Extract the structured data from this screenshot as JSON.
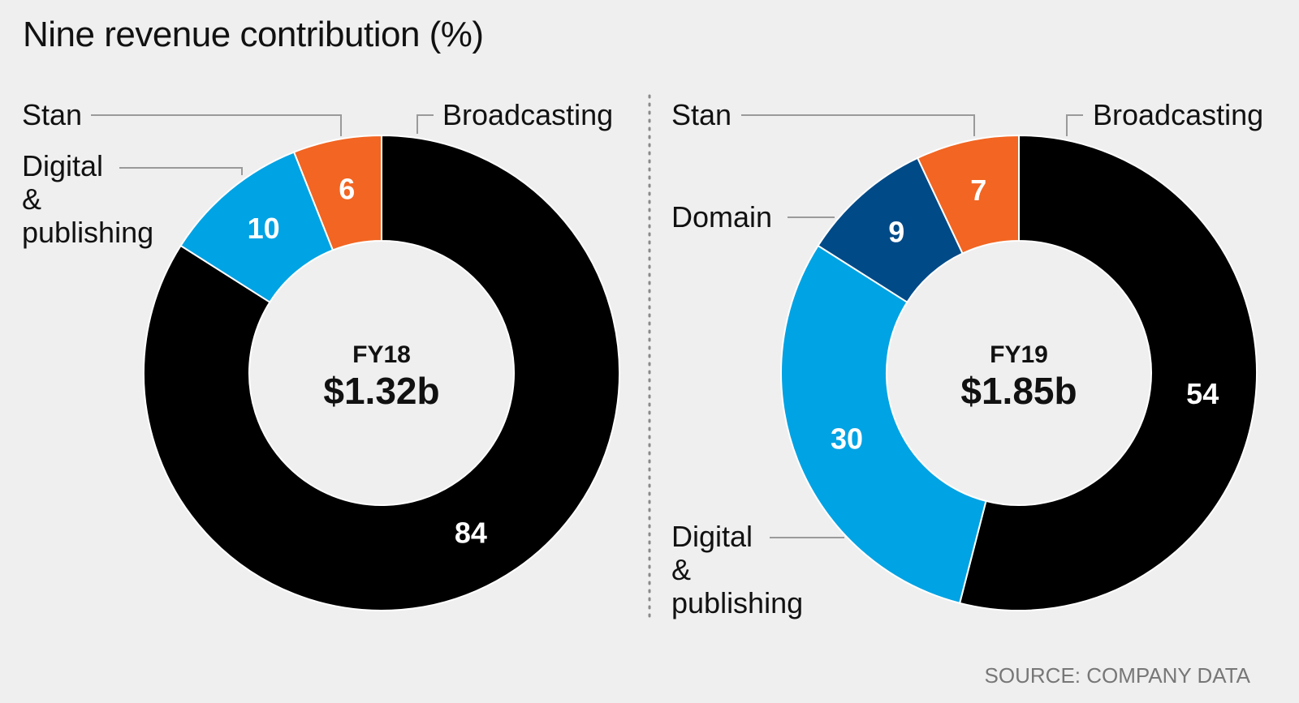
{
  "title": "Nine revenue contribution (%)",
  "source": "SOURCE: COMPANY DATA",
  "chart_data": [
    {
      "type": "pie",
      "period": "FY18",
      "total": "$1.32b",
      "slices": [
        {
          "label": "Broadcasting",
          "value": 84,
          "color": "#000000"
        },
        {
          "label": "Digital & publishing",
          "value": 10,
          "color": "#00a3e4"
        },
        {
          "label": "Stan",
          "value": 6,
          "color": "#f26522"
        }
      ]
    },
    {
      "type": "pie",
      "period": "FY19",
      "total": "$1.85b",
      "slices": [
        {
          "label": "Broadcasting",
          "value": 54,
          "color": "#000000"
        },
        {
          "label": "Digital & publishing",
          "value": 30,
          "color": "#00a3e4"
        },
        {
          "label": "Domain",
          "value": 9,
          "color": "#004a87"
        },
        {
          "label": "Stan",
          "value": 7,
          "color": "#f26522"
        }
      ]
    }
  ]
}
